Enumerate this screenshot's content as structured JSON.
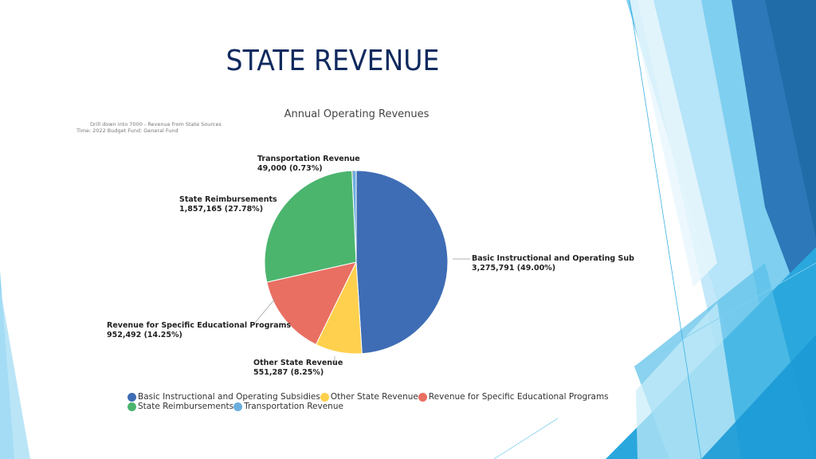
{
  "slide": {
    "title": "STATE REVENUE"
  },
  "notes": {
    "line1": "Drill down into 7000 - Revenue from State Sources",
    "line2": "Time: 2022 Budget Fund: General Fund"
  },
  "colors": {
    "title": "#0f2a5e",
    "deco_light": "#7fcff0",
    "deco_mid": "#2aa7dc",
    "deco_dark": "#1f6aa5"
  },
  "chart_data": {
    "type": "pie",
    "title": "Annual Operating Revenues",
    "slices": [
      {
        "name": "Basic Instructional and Operating Subsidies",
        "label_name": "Basic Instructional and Operating Sub",
        "value": 3275791,
        "value_text": "3,275,791 (49.00%)",
        "color": "#3e6db5"
      },
      {
        "name": "Other State Revenue",
        "label_name": "Other State Revenue",
        "value": 551287,
        "value_text": "551,287 (8.25%)",
        "color": "#ffd04d"
      },
      {
        "name": "Revenue for Specific Educational Programs",
        "label_name": "Revenue for Specific Educational Programs",
        "value": 952492,
        "value_text": "952,492 (14.25%)",
        "color": "#e96f62"
      },
      {
        "name": "State Reimbursements",
        "label_name": "State Reimbursements",
        "value": 1857165,
        "value_text": "1,857,165 (27.78%)",
        "color": "#4bb56e"
      },
      {
        "name": "Transportation Revenue",
        "label_name": "Transportation Revenue",
        "value": 49000,
        "value_text": "49,000 (0.73%)",
        "color": "#6aaee0"
      }
    ],
    "legend": {
      "rows": [
        [
          "Basic Instructional and Operating Subsidies",
          "Other State Revenue",
          "Revenue for Specific Educational Programs"
        ],
        [
          "State Reimbursements",
          "Transportation Revenue"
        ]
      ],
      "position": "bottom"
    }
  }
}
